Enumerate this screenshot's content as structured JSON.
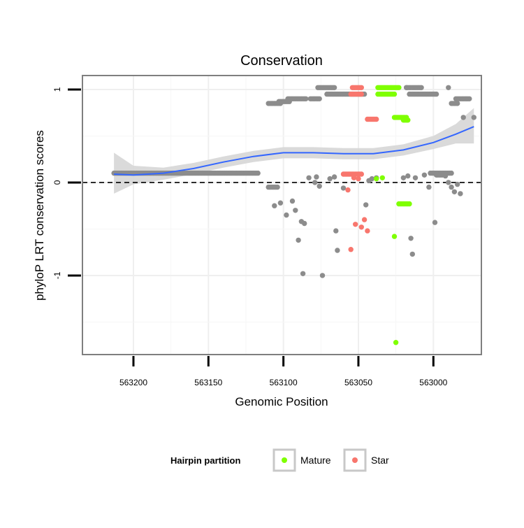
{
  "chart_data": {
    "type": "scatter",
    "title": "Conservation",
    "xlabel": "Genomic Position",
    "ylabel": "phyloP LRT conservation scores",
    "x_reversed": true,
    "xlim": [
      563234,
      562968
    ],
    "ylim": [
      -1.85,
      1.15
    ],
    "x_ticks": [
      563200,
      563150,
      563100,
      563050,
      563000
    ],
    "x_tick_labels": [
      "563200",
      "563150",
      "563100",
      "563050",
      "563000"
    ],
    "y_ticks": [
      1,
      0,
      -1
    ],
    "y_tick_labels": [
      "1",
      "0",
      "-1"
    ],
    "grid": true,
    "reference_line": {
      "y": 0,
      "style": "dashed"
    },
    "legend": {
      "title": "Hairpin partition",
      "position": "bottom",
      "entries": [
        {
          "label": "Mature",
          "color": "#7FFF00"
        },
        {
          "label": "Star",
          "color": "#F8766D"
        }
      ]
    },
    "colors": {
      "other": "#8C8C8C",
      "Mature": "#7FFF00",
      "Star": "#F8766D",
      "smooth": "#3366FF",
      "ribbon": "#D6D6D6"
    },
    "series": [
      {
        "name": "other",
        "segments": [
          {
            "x0": 563213,
            "x1": 563117,
            "y": 0.1
          },
          {
            "x0": 563110,
            "x1": 563102,
            "y": 0.85
          },
          {
            "x0": 563103,
            "x1": 563096,
            "y": 0.87
          },
          {
            "x0": 563097,
            "x1": 563085,
            "y": 0.9
          },
          {
            "x0": 563082,
            "x1": 563076,
            "y": 0.9
          },
          {
            "x0": 563077,
            "x1": 563066,
            "y": 1.02
          },
          {
            "x0": 563071,
            "x1": 563046,
            "y": 0.95
          },
          {
            "x0": 563018,
            "x1": 563008,
            "y": 1.02
          },
          {
            "x0": 563016,
            "x1": 562998,
            "y": 0.95
          },
          {
            "x0": 562985,
            "x1": 562976,
            "y": 0.9
          },
          {
            "x0": 562988,
            "x1": 562984,
            "y": 0.85
          },
          {
            "x0": 563110,
            "x1": 563104,
            "y": -0.05
          },
          {
            "x0": 563002,
            "x1": 562988,
            "y": 0.1
          },
          {
            "x0": 562998,
            "x1": 562994,
            "y": 0.08
          }
        ],
        "points": [
          {
            "x": 563018,
            "y": 1.02
          },
          {
            "x": 562990,
            "y": 1.02
          },
          {
            "x": 562980,
            "y": 0.7
          },
          {
            "x": 562973,
            "y": 0.7
          },
          {
            "x": 563106,
            "y": -0.25
          },
          {
            "x": 563102,
            "y": -0.22
          },
          {
            "x": 563098,
            "y": -0.35
          },
          {
            "x": 563094,
            "y": -0.2
          },
          {
            "x": 563092,
            "y": -0.3
          },
          {
            "x": 563090,
            "y": -0.62
          },
          {
            "x": 563088,
            "y": -0.42
          },
          {
            "x": 563086,
            "y": -0.44
          },
          {
            "x": 563087,
            "y": -0.98
          },
          {
            "x": 563083,
            "y": 0.05
          },
          {
            "x": 563079,
            "y": 0.0
          },
          {
            "x": 563078,
            "y": 0.06
          },
          {
            "x": 563076,
            "y": -0.04
          },
          {
            "x": 563074,
            "y": -1.0
          },
          {
            "x": 563069,
            "y": 0.04
          },
          {
            "x": 563066,
            "y": 0.06
          },
          {
            "x": 563065,
            "y": -0.52
          },
          {
            "x": 563064,
            "y": -0.73
          },
          {
            "x": 563060,
            "y": -0.06
          },
          {
            "x": 563045,
            "y": -0.24
          },
          {
            "x": 563043,
            "y": 0.02
          },
          {
            "x": 563041,
            "y": 0.04
          },
          {
            "x": 563038,
            "y": 0.05
          },
          {
            "x": 563015,
            "y": -0.6
          },
          {
            "x": 563014,
            "y": -0.77
          },
          {
            "x": 563012,
            "y": 0.05
          },
          {
            "x": 563006,
            "y": 0.08
          },
          {
            "x": 563003,
            "y": -0.05
          },
          {
            "x": 562999,
            "y": -0.43
          },
          {
            "x": 562992,
            "y": 0.07
          },
          {
            "x": 562990,
            "y": 0.0
          },
          {
            "x": 562988,
            "y": -0.05
          },
          {
            "x": 562984,
            "y": -0.02
          },
          {
            "x": 562986,
            "y": -0.1
          },
          {
            "x": 562982,
            "y": -0.12
          },
          {
            "x": 563020,
            "y": 0.05
          },
          {
            "x": 563017,
            "y": 0.07
          }
        ]
      },
      {
        "name": "Mature",
        "segments": [
          {
            "x0": 563037,
            "x1": 563023,
            "y": 1.02
          },
          {
            "x0": 563037,
            "x1": 563026,
            "y": 0.95
          },
          {
            "x0": 563026,
            "x1": 563018,
            "y": 0.7
          },
          {
            "x0": 563020,
            "x1": 563017,
            "y": 0.67
          },
          {
            "x0": 563023,
            "x1": 563016,
            "y": -0.23
          }
        ],
        "points": [
          {
            "x": 563038,
            "y": 0.04
          },
          {
            "x": 563034,
            "y": 0.05
          },
          {
            "x": 563026,
            "y": -0.58
          },
          {
            "x": 563025,
            "y": -1.72
          }
        ]
      },
      {
        "name": "Star",
        "segments": [
          {
            "x0": 563054,
            "x1": 563048,
            "y": 1.02
          },
          {
            "x0": 563055,
            "x1": 563048,
            "y": 0.95
          },
          {
            "x0": 563044,
            "x1": 563038,
            "y": 0.68
          },
          {
            "x0": 563060,
            "x1": 563048,
            "y": 0.09
          }
        ],
        "points": [
          {
            "x": 563053,
            "y": 0.05
          },
          {
            "x": 563050,
            "y": 0.04
          },
          {
            "x": 563052,
            "y": -0.45
          },
          {
            "x": 563048,
            "y": -0.48
          },
          {
            "x": 563044,
            "y": -0.52
          },
          {
            "x": 563046,
            "y": -0.4
          },
          {
            "x": 563055,
            "y": -0.72
          },
          {
            "x": 563057,
            "y": -0.08
          }
        ]
      }
    ],
    "smooth": {
      "method": "loess",
      "x": [
        563213,
        563200,
        563180,
        563160,
        563140,
        563120,
        563100,
        563080,
        563060,
        563040,
        563020,
        563000,
        562985,
        562973
      ],
      "y": [
        0.09,
        0.08,
        0.1,
        0.15,
        0.22,
        0.28,
        0.32,
        0.32,
        0.31,
        0.31,
        0.35,
        0.43,
        0.52,
        0.6
      ],
      "lower": [
        -0.12,
        -0.02,
        0.03,
        0.09,
        0.16,
        0.22,
        0.26,
        0.26,
        0.25,
        0.25,
        0.29,
        0.36,
        0.42,
        0.42
      ],
      "upper": [
        0.32,
        0.18,
        0.16,
        0.21,
        0.28,
        0.34,
        0.38,
        0.38,
        0.37,
        0.37,
        0.41,
        0.5,
        0.63,
        0.8
      ]
    }
  }
}
